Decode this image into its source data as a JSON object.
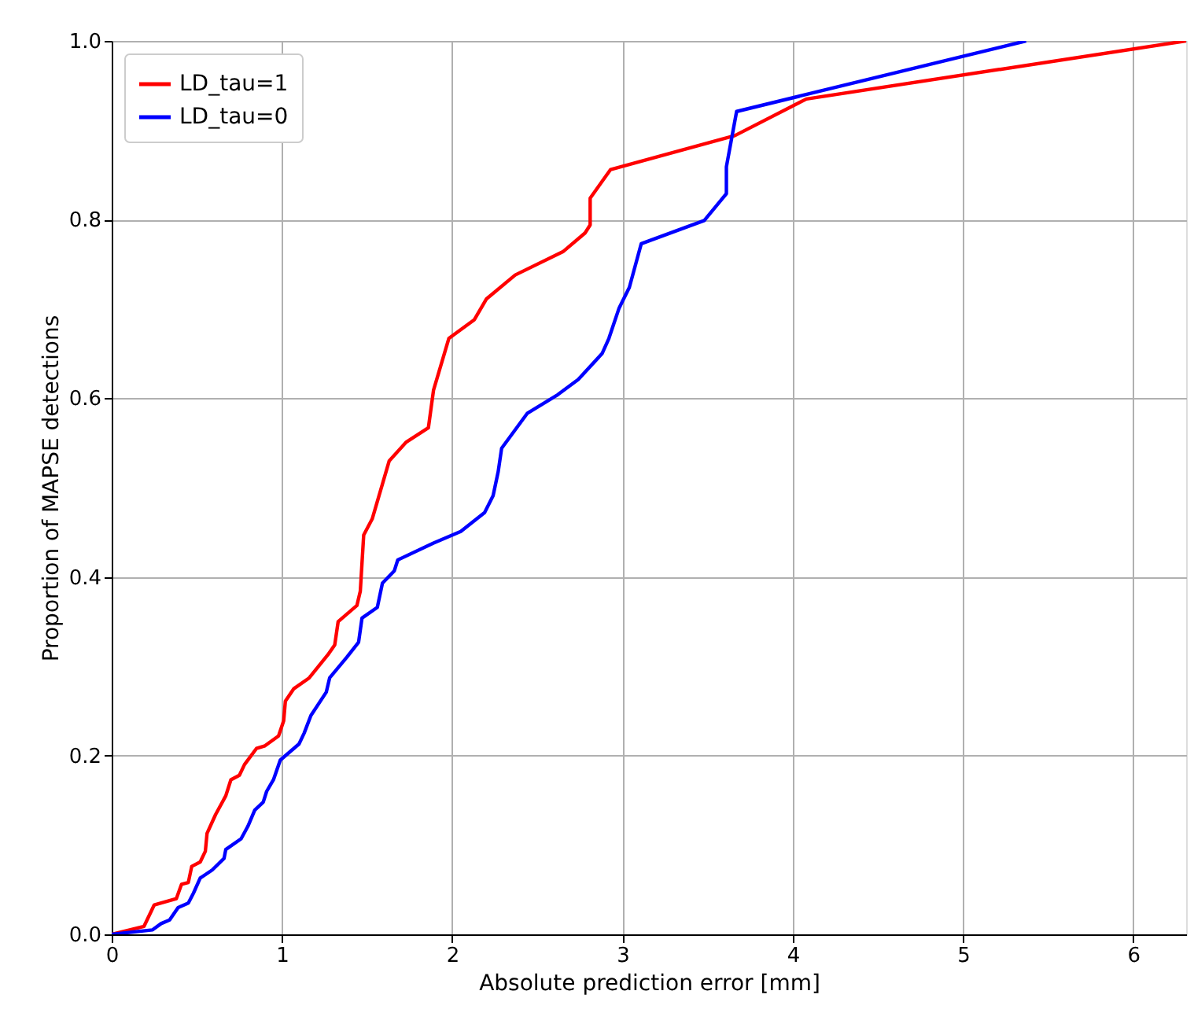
{
  "chart_data": {
    "type": "line",
    "xlabel": "Absolute prediction error [mm]",
    "ylabel": "Proportion of MAPSE detections",
    "xlim": [
      0,
      6.31
    ],
    "ylim": [
      0,
      1.0
    ],
    "xticks": [
      0,
      1,
      2,
      3,
      4,
      5,
      6
    ],
    "yticks": [
      {
        "value": 0,
        "label": "0.0"
      },
      {
        "value": 0.2,
        "label": "0.2"
      },
      {
        "value": 0.4,
        "label": "0.4"
      },
      {
        "value": 0.6,
        "label": "0.6"
      },
      {
        "value": 0.8,
        "label": "0.8"
      },
      {
        "value": 1.0,
        "label": "1.0"
      }
    ],
    "grid": true,
    "legend": "top left",
    "marker": "none",
    "line_style": "solid",
    "series": [
      {
        "name": "LD_tau=1",
        "color": "#ff0000",
        "x": [
          0,
          0.19,
          0.25,
          0.38,
          0.41,
          0.45,
          0.47,
          0.52,
          0.55,
          0.56,
          0.61,
          0.67,
          0.7,
          0.75,
          0.78,
          0.85,
          0.9,
          0.98,
          1.01,
          1.02,
          1.07,
          1.16,
          1.27,
          1.31,
          1.33,
          1.44,
          1.46,
          1.48,
          1.53,
          1.63,
          1.73,
          1.86,
          1.89,
          1.98,
          2.13,
          2.2,
          2.37,
          2.65,
          2.78,
          2.81,
          2.81,
          2.93,
          3.66,
          4.08,
          6.31
        ],
        "values": [
          0,
          0.009,
          0.033,
          0.04,
          0.056,
          0.058,
          0.076,
          0.081,
          0.093,
          0.113,
          0.134,
          0.155,
          0.173,
          0.178,
          0.19,
          0.208,
          0.211,
          0.222,
          0.239,
          0.261,
          0.275,
          0.287,
          0.313,
          0.324,
          0.35,
          0.368,
          0.384,
          0.447,
          0.465,
          0.53,
          0.551,
          0.567,
          0.609,
          0.667,
          0.688,
          0.711,
          0.738,
          0.764,
          0.785,
          0.794,
          0.824,
          0.856,
          0.894,
          0.935,
          1.0
        ]
      },
      {
        "name": "LD_tau=0",
        "color": "#0000ff",
        "x": [
          0,
          0.24,
          0.29,
          0.34,
          0.39,
          0.45,
          0.48,
          0.52,
          0.59,
          0.66,
          0.67,
          0.76,
          0.8,
          0.84,
          0.89,
          0.91,
          0.95,
          0.99,
          1.1,
          1.13,
          1.17,
          1.26,
          1.28,
          1.38,
          1.45,
          1.47,
          1.56,
          1.59,
          1.66,
          1.68,
          1.89,
          2.05,
          2.19,
          2.24,
          2.27,
          2.29,
          2.44,
          2.62,
          2.74,
          2.88,
          2.92,
          2.98,
          3.04,
          3.11,
          3.48,
          3.61,
          3.61,
          3.67,
          5.37
        ],
        "values": [
          0,
          0.005,
          0.012,
          0.016,
          0.03,
          0.035,
          0.046,
          0.063,
          0.072,
          0.085,
          0.095,
          0.107,
          0.121,
          0.139,
          0.148,
          0.16,
          0.173,
          0.195,
          0.213,
          0.225,
          0.245,
          0.271,
          0.287,
          0.31,
          0.327,
          0.354,
          0.366,
          0.393,
          0.407,
          0.419,
          0.438,
          0.451,
          0.472,
          0.491,
          0.518,
          0.544,
          0.583,
          0.604,
          0.621,
          0.65,
          0.667,
          0.701,
          0.724,
          0.773,
          0.799,
          0.829,
          0.859,
          0.921,
          1.0
        ]
      }
    ]
  }
}
